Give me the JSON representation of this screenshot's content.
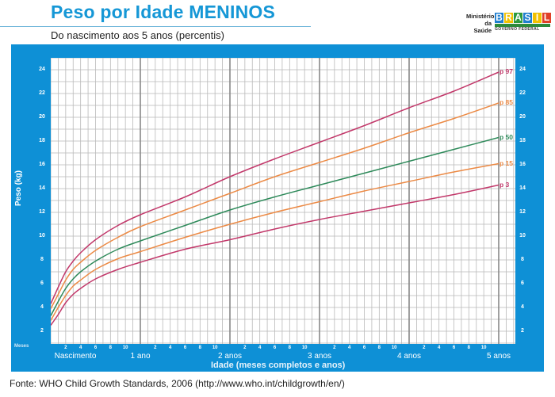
{
  "header": {
    "title": "Peso por Idade MENINOS",
    "subtitle": "Do nascimento aos 5 anos (percentis)"
  },
  "logo": {
    "ministry_line1": "Ministério",
    "ministry_line2": "da Saúde",
    "brand_letters": [
      "B",
      "R",
      "A",
      "S",
      "I",
      "L"
    ],
    "brand_colors": [
      "#1f7fcf",
      "#f2c100",
      "#2d9a3d",
      "#1f7fcf",
      "#f2c100",
      "#e04028"
    ],
    "tagline": "UM PAÍS DE TODOS",
    "government": "GOVERNO FEDERAL"
  },
  "axes": {
    "y_label": "Peso (kg)",
    "x_label": "Idade (meses completos e anos)",
    "months_label": "Meses",
    "y_ticks": [
      "24",
      "22",
      "20",
      "18",
      "16",
      "14",
      "12",
      "10",
      "8",
      "6",
      "4",
      "2"
    ],
    "month_ticks": [
      "2",
      "4",
      "6",
      "8",
      "10"
    ],
    "year_labels": [
      "Nascimento",
      "1 ano",
      "2 anos",
      "3 anos",
      "4 anos",
      "5 anos"
    ]
  },
  "source": "Fonte: WHO Child Growth Standards, 2006 (http://www.who.int/childgrowth/en/)",
  "colors": {
    "panel": "#0e90d6",
    "title": "#1597d6",
    "p97": "#c2386a",
    "p85": "#ec8a45",
    "p50": "#2e8a5a",
    "p15": "#ec8a45",
    "p3": "#c2386a"
  },
  "chart_data": {
    "type": "line",
    "title": "Peso por Idade MENINOS",
    "subtitle": "Do nascimento aos 5 anos (percentis)",
    "xlabel": "Idade (meses completos e anos)",
    "ylabel": "Peso (kg)",
    "x_unit": "months",
    "xlim": [
      0,
      60
    ],
    "ylim": [
      1,
      25
    ],
    "grid": true,
    "legend_position": "right end of curves",
    "x": [
      0,
      1,
      2,
      3,
      4,
      6,
      9,
      12,
      18,
      24,
      30,
      36,
      42,
      48,
      54,
      60
    ],
    "series": [
      {
        "name": "p 97",
        "label": "p 97",
        "values": [
          4.3,
          5.7,
          7.0,
          7.9,
          8.6,
          9.7,
          10.9,
          11.8,
          13.3,
          15.0,
          16.5,
          17.9,
          19.3,
          20.8,
          22.2,
          23.8
        ]
      },
      {
        "name": "p 85",
        "label": "p 85",
        "values": [
          3.9,
          5.1,
          6.3,
          7.2,
          7.8,
          8.8,
          9.9,
          10.8,
          12.2,
          13.6,
          15.0,
          16.2,
          17.4,
          18.7,
          19.9,
          21.2
        ]
      },
      {
        "name": "p 50",
        "label": "p 50",
        "values": [
          3.3,
          4.5,
          5.6,
          6.4,
          7.0,
          7.9,
          8.9,
          9.6,
          10.9,
          12.2,
          13.3,
          14.3,
          15.3,
          16.3,
          17.3,
          18.3
        ]
      },
      {
        "name": "p 15",
        "label": "p 15",
        "values": [
          2.9,
          4.0,
          5.0,
          5.8,
          6.3,
          7.2,
          8.1,
          8.7,
          9.9,
          11.0,
          12.0,
          12.9,
          13.8,
          14.6,
          15.4,
          16.1
        ]
      },
      {
        "name": "p 3",
        "label": "p 3",
        "values": [
          2.5,
          3.4,
          4.4,
          5.1,
          5.6,
          6.4,
          7.2,
          7.8,
          8.9,
          9.7,
          10.6,
          11.4,
          12.1,
          12.8,
          13.5,
          14.3
        ]
      }
    ]
  }
}
